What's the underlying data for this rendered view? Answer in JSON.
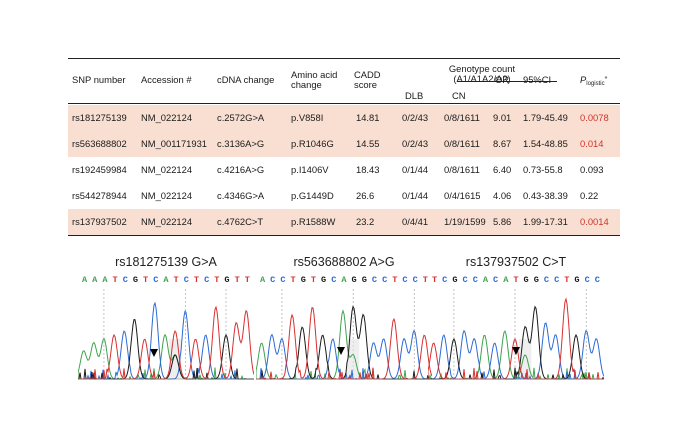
{
  "table": {
    "headers": {
      "snp": "SNP number",
      "accession": "Accession #",
      "cdna": "cDNA change",
      "amino_l1": "Amino acid",
      "amino_l2": "change",
      "cadd_l1": "CADD",
      "cadd_l2": "score",
      "geno_l1": "Genotype count",
      "geno_l2": "(A1/A1A2/A2)",
      "dlb": "DLB",
      "cn": "CN",
      "or": "OR",
      "ci": "95%CI",
      "p_main": "P",
      "p_sub": "logistic",
      "p_sup": "*"
    },
    "rows": [
      {
        "snp": "rs181275139",
        "acc": "NM_022124",
        "cdna": "c.2572G>A",
        "aa": "p.V858I",
        "cadd": "14.81",
        "dlb": "0/2/43",
        "cn": "0/8/1611",
        "or": "9.01",
        "ci": "1.79-45.49",
        "p": "0.0078",
        "highlight": true
      },
      {
        "snp": "rs563688802",
        "acc": "NM_001171931",
        "cdna": "c.3136A>G",
        "aa": "p.R1046G",
        "cadd": "14.55",
        "dlb": "0/2/43",
        "cn": "0/8/1611",
        "or": "8.67",
        "ci": "1.54-48.85",
        "p": "0.014",
        "highlight": true
      },
      {
        "snp": "rs192459984",
        "acc": "NM_022124",
        "cdna": "c.4216A>G",
        "aa": "p.I1406V",
        "cadd": "18.43",
        "dlb": "0/1/44",
        "cn": "0/8/1611",
        "or": "6.40",
        "ci": "0.73-55.8",
        "p": "0.093",
        "highlight": false
      },
      {
        "snp": "rs544278944",
        "acc": "NM_022124",
        "cdna": "c.4346G>A",
        "aa": "p.G1449D",
        "cadd": "26.6",
        "dlb": "0/1/44",
        "cn": "0/4/1615",
        "or": "4.06",
        "ci": "0.43-38.39",
        "p": "0.22",
        "highlight": false
      },
      {
        "snp": "rs137937502",
        "acc": "NM_022124",
        "cdna": "c.4762C>T",
        "aa": "p.R1588W",
        "cadd": "23.2",
        "dlb": "0/4/41",
        "cn": "1/19/1599",
        "or": "5.86",
        "ci": "1.99-17.31",
        "p": "0.0014",
        "highlight": true
      }
    ],
    "colors": {
      "highlight_bg": "#f8dfd2",
      "significant_p": "#d0342a"
    }
  },
  "chromatograms": [
    {
      "title": "rs181275139 G>A",
      "sequence": "AAATCGTCATCTCTGTT"
    },
    {
      "title": "rs563688802 A>G",
      "sequence": "ACCTGTGCAGGCCTCCT"
    },
    {
      "title": "rs137937502 C>T",
      "sequence": "TCGCCACATGGCCTGCC"
    }
  ],
  "base_colors": {
    "A": "#3fa34d",
    "C": "#2c6bd6",
    "G": "#1a1a1a",
    "T": "#d93030"
  }
}
